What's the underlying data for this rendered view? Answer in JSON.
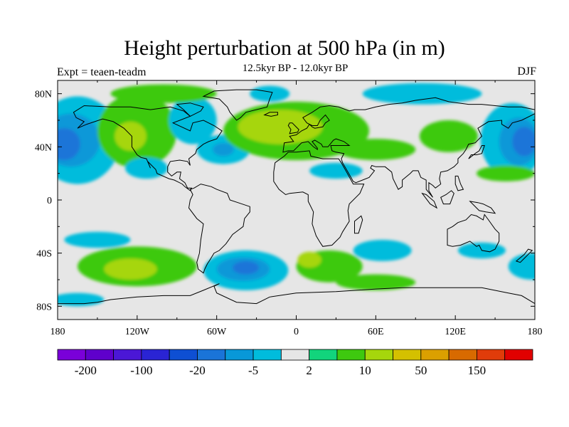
{
  "header": {
    "title": "Height perturbation at 500 hPa (in m)",
    "subtitle": "12.5kyr BP - 12.0kyr BP",
    "left_label": "Expt = teaen-teadm",
    "right_label": "DJF"
  },
  "axes": {
    "y_ticks": [
      {
        "value": 80,
        "label": "80N"
      },
      {
        "value": 40,
        "label": "40N"
      },
      {
        "value": 0,
        "label": "0"
      },
      {
        "value": -40,
        "label": "40S"
      },
      {
        "value": -80,
        "label": "80S"
      }
    ],
    "x_ticks": [
      {
        "value": -180,
        "label": "180"
      },
      {
        "value": -120,
        "label": "120W"
      },
      {
        "value": -60,
        "label": "60W"
      },
      {
        "value": 0,
        "label": "0"
      },
      {
        "value": 60,
        "label": "60E"
      },
      {
        "value": 120,
        "label": "120E"
      },
      {
        "value": 180,
        "label": "180"
      }
    ],
    "lon_range": [
      -180,
      180
    ],
    "lat_range": [
      -90,
      90
    ]
  },
  "colorbar": {
    "colors": [
      "#7a00d9",
      "#5f00cc",
      "#4b17d6",
      "#2a24d4",
      "#0e4fd3",
      "#1a74d8",
      "#0898d8",
      "#00bcdc",
      "#e6e6e6",
      "#12d47c",
      "#3ec90f",
      "#a6d60c",
      "#d4c000",
      "#dba000",
      "#d86a00",
      "#e03c0a",
      "#e10000"
    ],
    "labels": [
      {
        "index": 1,
        "text": "-200"
      },
      {
        "index": 3,
        "text": "-100"
      },
      {
        "index": 5,
        "text": "-20"
      },
      {
        "index": 7,
        "text": "-5"
      },
      {
        "index": 9,
        "text": "2"
      },
      {
        "index": 11,
        "text": "10"
      },
      {
        "index": 13,
        "text": "50"
      },
      {
        "index": 15,
        "text": "150"
      }
    ]
  },
  "map_fields": [
    {
      "name": "pac-cyan",
      "lon": -165,
      "lat": 45,
      "rx": 32,
      "ry": 33,
      "level": 7
    },
    {
      "name": "pac-blue",
      "lon": -170,
      "lat": 45,
      "rx": 22,
      "ry": 20,
      "level": 6
    },
    {
      "name": "pac-dark",
      "lon": -175,
      "lat": 42,
      "rx": 12,
      "ry": 12,
      "level": 5
    },
    {
      "name": "pac-east-cyan",
      "lon": 163,
      "lat": 45,
      "rx": 24,
      "ry": 28,
      "level": 7
    },
    {
      "name": "pac-east-blue",
      "lon": 168,
      "lat": 44,
      "rx": 15,
      "ry": 18,
      "level": 6
    },
    {
      "name": "pac-east-dark",
      "lon": 172,
      "lat": 44,
      "rx": 9,
      "ry": 11,
      "level": 5
    },
    {
      "name": "namer-green",
      "lon": -120,
      "lat": 52,
      "rx": 30,
      "ry": 28,
      "level": 10
    },
    {
      "name": "namer-yellow",
      "lon": -125,
      "lat": 48,
      "rx": 12,
      "ry": 11,
      "level": 11
    },
    {
      "name": "baffin-cyan",
      "lon": -78,
      "lat": 60,
      "rx": 18,
      "ry": 18,
      "level": 7
    },
    {
      "name": "natl-cyan",
      "lon": -55,
      "lat": 38,
      "rx": 20,
      "ry": 11,
      "level": 7
    },
    {
      "name": "natl-blue",
      "lon": -55,
      "lat": 38,
      "rx": 8,
      "ry": 5,
      "level": 6
    },
    {
      "name": "mexico-cyan",
      "lon": -113,
      "lat": 24,
      "rx": 16,
      "ry": 8,
      "level": 7
    },
    {
      "name": "eurasia-green",
      "lon": 0,
      "lat": 52,
      "rx": 55,
      "ry": 22,
      "level": 10
    },
    {
      "name": "eurasia-yellow",
      "lon": -12,
      "lat": 55,
      "rx": 32,
      "ry": 13,
      "level": 11
    },
    {
      "name": "arctic-cyan-east",
      "lon": 95,
      "lat": 80,
      "rx": 45,
      "ry": 8,
      "level": 7
    },
    {
      "name": "arctic-green",
      "lon": -100,
      "lat": 80,
      "rx": 40,
      "ry": 7,
      "level": 10
    },
    {
      "name": "arctic-cyan-west",
      "lon": -20,
      "lat": 80,
      "rx": 15,
      "ry": 6,
      "level": 7
    },
    {
      "name": "siberia-green",
      "lon": 115,
      "lat": 48,
      "rx": 22,
      "ry": 12,
      "level": 10
    },
    {
      "name": "asia-green",
      "lon": 60,
      "lat": 38,
      "rx": 30,
      "ry": 8,
      "level": 10
    },
    {
      "name": "mideast-cyan",
      "lon": 30,
      "lat": 22,
      "rx": 20,
      "ry": 6,
      "level": 7
    },
    {
      "name": "sw-green",
      "lon": 158,
      "lat": 20,
      "rx": 22,
      "ry": 6,
      "level": 10
    },
    {
      "name": "sp-green-w",
      "lon": -120,
      "lat": -50,
      "rx": 45,
      "ry": 15,
      "level": 10
    },
    {
      "name": "sp-yellow-w",
      "lon": -125,
      "lat": -52,
      "rx": 20,
      "ry": 8,
      "level": 11
    },
    {
      "name": "sp-cyan-w",
      "lon": -150,
      "lat": -30,
      "rx": 25,
      "ry": 6,
      "level": 7
    },
    {
      "name": "satl-cyan",
      "lon": -38,
      "lat": -53,
      "rx": 32,
      "ry": 15,
      "level": 7
    },
    {
      "name": "satl-blue",
      "lon": -40,
      "lat": -52,
      "rx": 20,
      "ry": 9,
      "level": 6
    },
    {
      "name": "satl-dark",
      "lon": -38,
      "lat": -51,
      "rx": 10,
      "ry": 5,
      "level": 5
    },
    {
      "name": "sind-green",
      "lon": 25,
      "lat": -50,
      "rx": 25,
      "ry": 12,
      "level": 10
    },
    {
      "name": "sind-yellow",
      "lon": 10,
      "lat": -45,
      "rx": 9,
      "ry": 6,
      "level": 11
    },
    {
      "name": "sind-cyan",
      "lon": 65,
      "lat": -38,
      "rx": 22,
      "ry": 8,
      "level": 7
    },
    {
      "name": "sind-green2",
      "lon": 60,
      "lat": -62,
      "rx": 30,
      "ry": 6,
      "level": 10
    },
    {
      "name": "spac-cyan-e",
      "lon": 178,
      "lat": -50,
      "rx": 18,
      "ry": 10,
      "level": 7
    },
    {
      "name": "antarc-cyan",
      "lon": -165,
      "lat": -75,
      "rx": 20,
      "ry": 5,
      "level": 7
    },
    {
      "name": "spac-cyan2",
      "lon": 140,
      "lat": -38,
      "rx": 18,
      "ry": 6,
      "level": 7
    }
  ]
}
